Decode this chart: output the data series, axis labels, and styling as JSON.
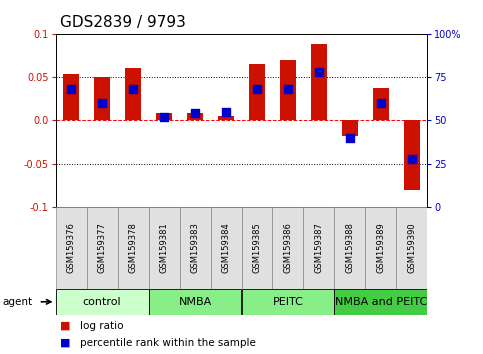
{
  "title": "GDS2839 / 9793",
  "samples": [
    "GSM159376",
    "GSM159377",
    "GSM159378",
    "GSM159381",
    "GSM159383",
    "GSM159384",
    "GSM159385",
    "GSM159386",
    "GSM159387",
    "GSM159388",
    "GSM159389",
    "GSM159390"
  ],
  "log_ratio": [
    0.054,
    0.05,
    0.06,
    0.008,
    0.008,
    0.005,
    0.065,
    0.07,
    0.088,
    -0.018,
    0.037,
    -0.08
  ],
  "percentile": [
    68,
    60,
    68,
    52,
    54,
    55,
    68,
    68,
    78,
    40,
    60,
    28
  ],
  "bar_color": "#cc1100",
  "dot_color": "#0000cc",
  "ylim": [
    -0.1,
    0.1
  ],
  "yticks_left": [
    -0.1,
    -0.05,
    0.0,
    0.05,
    0.1
  ],
  "yticks_right": [
    0,
    25,
    50,
    75,
    100
  ],
  "bar_width": 0.5,
  "dot_size": 28,
  "title_fontsize": 11,
  "tick_fontsize": 7,
  "sample_fontsize": 6,
  "group_label_fontsize": 8,
  "legend_fontsize": 7.5,
  "group_configs": [
    {
      "label": "control",
      "start": 0,
      "end": 2,
      "color": "#ccffcc"
    },
    {
      "label": "NMBA",
      "start": 3,
      "end": 5,
      "color": "#88ee88"
    },
    {
      "label": "PEITC",
      "start": 6,
      "end": 8,
      "color": "#88ee88"
    },
    {
      "label": "NMBA and PEITC",
      "start": 9,
      "end": 11,
      "color": "#44cc44"
    }
  ]
}
